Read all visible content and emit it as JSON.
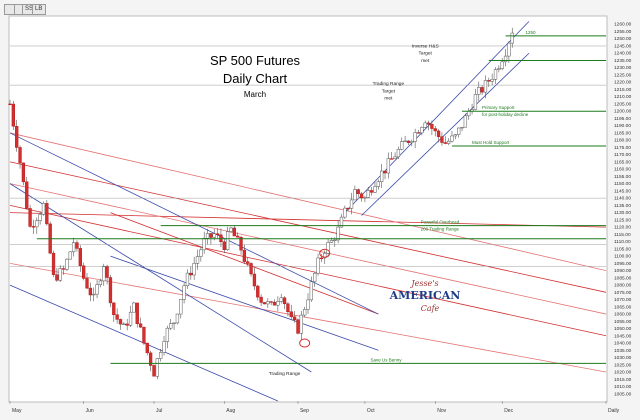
{
  "toolbar": {
    "buttons": [
      "",
      "",
      "SS",
      "LB"
    ]
  },
  "chart_data": {
    "type": "candlestick",
    "title": "SP 500 Futures",
    "subtitle": "Daily Chart",
    "period": "March",
    "watermark_text": [
      "Jesse's",
      "AMERICAN",
      "Cafe"
    ],
    "ylim": [
      1000,
      1265
    ],
    "yticks": [
      1260,
      1255,
      1250,
      1245,
      1240,
      1235,
      1230,
      1225,
      1220,
      1215,
      1210,
      1205,
      1200,
      1195,
      1190,
      1185,
      1180,
      1175,
      1170,
      1165,
      1160,
      1155,
      1150,
      1145,
      1140,
      1135,
      1130,
      1125,
      1120,
      1115,
      1110,
      1105,
      1100,
      1095,
      1090,
      1085,
      1080,
      1075,
      1070,
      1065,
      1060,
      1055,
      1050,
      1045,
      1040,
      1035,
      1030,
      1025,
      1020,
      1015,
      1010,
      1005
    ],
    "months": [
      {
        "label": "May",
        "x": 0
      },
      {
        "label": "Jun",
        "x": 22
      },
      {
        "label": "Jul",
        "x": 43
      },
      {
        "label": "Aug",
        "x": 64
      },
      {
        "label": "Sep",
        "x": 86
      },
      {
        "label": "Oct",
        "x": 106
      },
      {
        "label": "Nov",
        "x": 127
      },
      {
        "label": "Dec",
        "x": 147
      },
      {
        "label": "Daily",
        "x": 178
      }
    ],
    "x_range": [
      0,
      178
    ],
    "close_path": [
      [
        0,
        1205
      ],
      [
        3,
        1165
      ],
      [
        6,
        1120
      ],
      [
        10,
        1135
      ],
      [
        13,
        1085
      ],
      [
        16,
        1090
      ],
      [
        19,
        1110
      ],
      [
        22,
        1085
      ],
      [
        25,
        1070
      ],
      [
        28,
        1095
      ],
      [
        31,
        1060
      ],
      [
        34,
        1050
      ],
      [
        37,
        1065
      ],
      [
        40,
        1040
      ],
      [
        43,
        1020
      ],
      [
        46,
        1045
      ],
      [
        49,
        1055
      ],
      [
        52,
        1080
      ],
      [
        55,
        1095
      ],
      [
        58,
        1110
      ],
      [
        61,
        1115
      ],
      [
        64,
        1108
      ],
      [
        66,
        1118
      ],
      [
        69,
        1105
      ],
      [
        72,
        1085
      ],
      [
        75,
        1070
      ],
      [
        78,
        1065
      ],
      [
        81,
        1075
      ],
      [
        84,
        1055
      ],
      [
        86,
        1050
      ],
      [
        88,
        1065
      ],
      [
        90,
        1080
      ],
      [
        92,
        1095
      ],
      [
        94,
        1105
      ],
      [
        96,
        1110
      ],
      [
        98,
        1118
      ],
      [
        100,
        1130
      ],
      [
        103,
        1145
      ],
      [
        106,
        1140
      ],
      [
        109,
        1152
      ],
      [
        112,
        1160
      ],
      [
        115,
        1170
      ],
      [
        118,
        1178
      ],
      [
        121,
        1185
      ],
      [
        124,
        1195
      ],
      [
        127,
        1185
      ],
      [
        130,
        1178
      ],
      [
        133,
        1182
      ],
      [
        136,
        1195
      ],
      [
        139,
        1210
      ],
      [
        142,
        1218
      ],
      [
        145,
        1228
      ],
      [
        148,
        1242
      ],
      [
        150,
        1256
      ]
    ],
    "candle_range": [
      [
        0,
        1210,
        1105
      ],
      [
        150,
        1258,
        1228
      ]
    ],
    "red_channels": [
      {
        "x0": 0,
        "y0": 1130,
        "x1": 178,
        "y1": 1120
      },
      {
        "x0": 0,
        "y0": 1185,
        "x1": 178,
        "y1": 1090
      },
      {
        "x0": 0,
        "y0": 1165,
        "x1": 178,
        "y1": 1075
      },
      {
        "x0": 0,
        "y0": 1150,
        "x1": 178,
        "y1": 1060
      },
      {
        "x0": 0,
        "y0": 1135,
        "x1": 178,
        "y1": 1045
      },
      {
        "x0": 0,
        "y0": 1095,
        "x1": 178,
        "y1": 1020
      },
      {
        "x0": 30,
        "y0": 1130,
        "x1": 110,
        "y1": 1060
      }
    ],
    "blue_channels": [
      {
        "x0": 0,
        "y0": 1185,
        "x1": 110,
        "y1": 1060
      },
      {
        "x0": 0,
        "y0": 1150,
        "x1": 90,
        "y1": 1020
      },
      {
        "x0": 0,
        "y0": 1080,
        "x1": 80,
        "y1": 1000
      },
      {
        "x0": 30,
        "y0": 1100,
        "x1": 110,
        "y1": 1035
      },
      {
        "x0": 100,
        "y0": 1130,
        "x1": 155,
        "y1": 1262
      },
      {
        "x0": 105,
        "y0": 1128,
        "x1": 155,
        "y1": 1240
      }
    ],
    "green_levels": [
      {
        "y": 1121,
        "x0": 45,
        "x1": 178,
        "label": "Powerful Overhead",
        "label2": "200 Trading Range"
      },
      {
        "y": 1112,
        "x0": 8,
        "x1": 178,
        "label": ""
      },
      {
        "y": 1026,
        "x0": 30,
        "x1": 178,
        "label": "Save Us Benny"
      },
      {
        "y": 1176,
        "x0": 132,
        "x1": 178,
        "label": "Must Hold Support"
      },
      {
        "y": 1200,
        "x0": 135,
        "x1": 178,
        "label": "Primary Support",
        "label2": "for post-holiday decline"
      },
      {
        "y": 1252,
        "x0": 148,
        "x1": 178,
        "label": "1250"
      },
      {
        "y": 1235,
        "x0": 143,
        "x1": 178,
        "label": ""
      }
    ],
    "gray_levels": [
      1093,
      1108,
      1140,
      1218,
      1245
    ],
    "annotations": [
      {
        "text": "Inverse H&S",
        "x": 124,
        "y": 1244
      },
      {
        "text": "Target",
        "x": 124,
        "y": 1239
      },
      {
        "text": "met",
        "x": 124,
        "y": 1234
      },
      {
        "text": "Trading Range",
        "x": 113,
        "y": 1218
      },
      {
        "text": "Target",
        "x": 113,
        "y": 1213
      },
      {
        "text": "met",
        "x": 113,
        "y": 1208
      },
      {
        "text": "Trading Range",
        "x": 82,
        "y": 1018
      }
    ],
    "circles": [
      {
        "x": 94,
        "y": 1102
      },
      {
        "x": 88,
        "y": 1040
      }
    ],
    "grid": false,
    "legend": "none"
  }
}
